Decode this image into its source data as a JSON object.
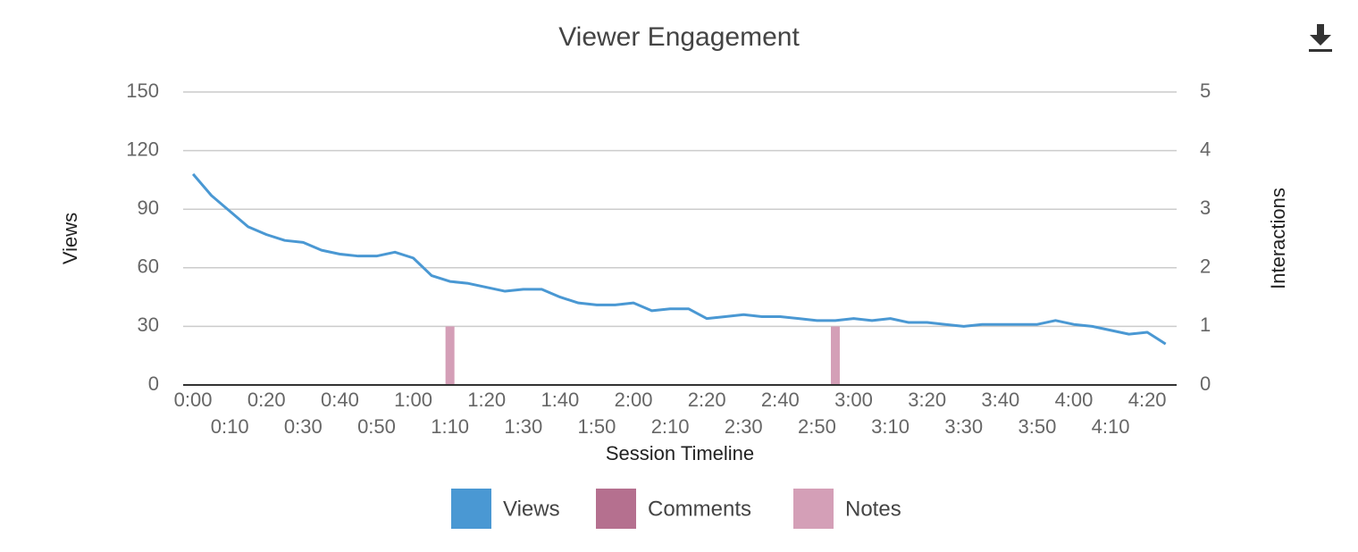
{
  "chart_data": {
    "type": "line",
    "title": "Viewer Engagement",
    "x_label": "Session Timeline",
    "y_label": "Views",
    "y2_label": "Interactions",
    "x": [
      0,
      5,
      10,
      15,
      20,
      25,
      30,
      35,
      40,
      45,
      50,
      55,
      60,
      65,
      70,
      75,
      80,
      85,
      90,
      95,
      100,
      105,
      110,
      115,
      120,
      125,
      130,
      135,
      140,
      145,
      150,
      155,
      160,
      165,
      170,
      175,
      180,
      185,
      190,
      195,
      200,
      205,
      210,
      215,
      220,
      225,
      230,
      235,
      240,
      245,
      250,
      255,
      260,
      265
    ],
    "series": [
      {
        "name": "Views",
        "type": "line",
        "color": "#4a98d3",
        "values": [
          108,
          97,
          89,
          81,
          77,
          74,
          73,
          69,
          67,
          66,
          66,
          68,
          65,
          56,
          53,
          52,
          50,
          48,
          49,
          49,
          45,
          42,
          41,
          41,
          42,
          38,
          39,
          39,
          34,
          35,
          36,
          35,
          35,
          34,
          33,
          33,
          34,
          33,
          34,
          32,
          32,
          31,
          30,
          31,
          31,
          31,
          31,
          33,
          31,
          30,
          28,
          26,
          27,
          21
        ]
      },
      {
        "name": "Comments",
        "type": "bar",
        "axis": "y2",
        "color": "#b5708f",
        "values": [
          0,
          0,
          0,
          0,
          0,
          0,
          0,
          0,
          0,
          0,
          0,
          0,
          0,
          0,
          0,
          0,
          0,
          0,
          0,
          0,
          0,
          0,
          0,
          0,
          0,
          0,
          0,
          0,
          0,
          0,
          0,
          0,
          0,
          0,
          0,
          0,
          0,
          0,
          0,
          0,
          0,
          0,
          0,
          0,
          0,
          0,
          0,
          0,
          0,
          0,
          0,
          0,
          0,
          0
        ]
      },
      {
        "name": "Notes",
        "type": "bar",
        "axis": "y2",
        "color": "#d49fb7",
        "values": [
          null,
          null,
          null,
          null,
          null,
          null,
          null,
          null,
          null,
          null,
          null,
          null,
          null,
          null,
          1,
          null,
          null,
          null,
          null,
          null,
          null,
          null,
          null,
          null,
          null,
          null,
          null,
          null,
          null,
          null,
          null,
          null,
          null,
          null,
          null,
          1,
          null,
          null,
          null,
          null,
          null,
          null,
          null,
          null,
          null,
          null,
          null,
          null,
          null,
          null,
          null,
          null,
          null,
          null
        ]
      }
    ],
    "xlim": [
      -2.7,
      268
    ],
    "xticks": [
      {
        "value": 0,
        "label": "0:00"
      },
      {
        "value": 10,
        "label": "0:10"
      },
      {
        "value": 20,
        "label": "0:20"
      },
      {
        "value": 30,
        "label": "0:30"
      },
      {
        "value": 40,
        "label": "0:40"
      },
      {
        "value": 50,
        "label": "0:50"
      },
      {
        "value": 60,
        "label": "1:00"
      },
      {
        "value": 70,
        "label": "1:10"
      },
      {
        "value": 80,
        "label": "1:20"
      },
      {
        "value": 90,
        "label": "1:30"
      },
      {
        "value": 100,
        "label": "1:40"
      },
      {
        "value": 110,
        "label": "1:50"
      },
      {
        "value": 120,
        "label": "2:00"
      },
      {
        "value": 130,
        "label": "2:10"
      },
      {
        "value": 140,
        "label": "2:20"
      },
      {
        "value": 150,
        "label": "2:30"
      },
      {
        "value": 160,
        "label": "2:40"
      },
      {
        "value": 170,
        "label": "2:50"
      },
      {
        "value": 180,
        "label": "3:00"
      },
      {
        "value": 190,
        "label": "3:10"
      },
      {
        "value": 200,
        "label": "3:20"
      },
      {
        "value": 210,
        "label": "3:30"
      },
      {
        "value": 220,
        "label": "3:40"
      },
      {
        "value": 230,
        "label": "3:50"
      },
      {
        "value": 240,
        "label": "4:00"
      },
      {
        "value": 250,
        "label": "4:10"
      },
      {
        "value": 260,
        "label": "4:20"
      }
    ],
    "ylim": [
      0,
      150
    ],
    "yticks": [
      0,
      30,
      60,
      90,
      120,
      150
    ],
    "y2lim": [
      0,
      5
    ],
    "y2ticks": [
      0,
      1,
      2,
      3,
      4,
      5
    ],
    "grid": true,
    "legend": "bottom"
  }
}
